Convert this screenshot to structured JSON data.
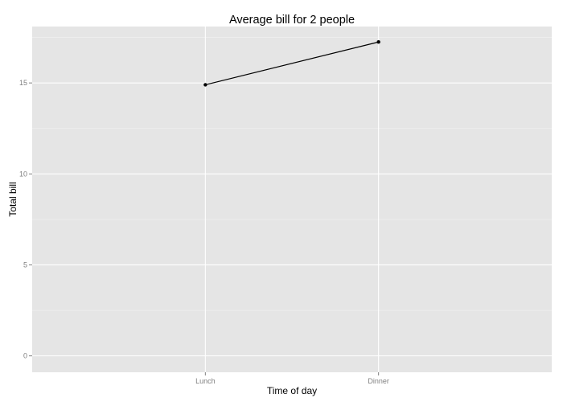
{
  "chart_data": {
    "type": "line",
    "title": "Average bill for 2 people",
    "xlabel": "Time of day",
    "ylabel": "Total bill",
    "categories": [
      "Lunch",
      "Dinner"
    ],
    "values": [
      14.9,
      17.25
    ],
    "ylim": [
      -0.9,
      18.1
    ],
    "yticks": [
      0,
      5,
      10,
      15
    ],
    "ytick_labels": [
      "0",
      "5",
      "10",
      "15"
    ],
    "grid": true,
    "colors": {
      "panel": "#e5e5e5",
      "grid": "#ffffff",
      "line": "#000000",
      "tick_text": "#7f7f7f"
    }
  }
}
